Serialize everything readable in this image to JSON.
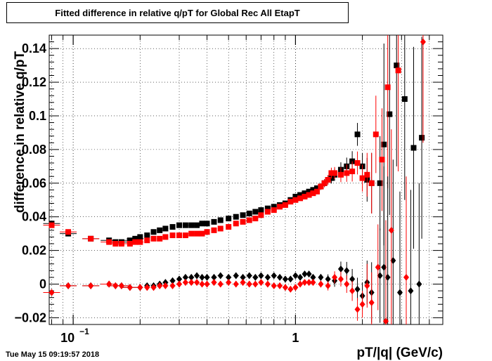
{
  "chart_data": {
    "type": "scatter",
    "title": "Fitted difference in relative q/pT for Global Rec All EtapT",
    "xlabel": "pT/|q| (GeV/c)",
    "ylabel": "difference in relative q/pT",
    "x_scale": "log",
    "xlim": [
      0.078,
      4.6
    ],
    "ylim": [
      -0.024,
      0.148
    ],
    "x_ticks": [
      {
        "value": 0.1,
        "label": "10",
        "sup": "−1"
      },
      {
        "value": 1,
        "label": "1",
        "sup": ""
      }
    ],
    "y_ticks": [
      -0.02,
      0,
      0.02,
      0.04,
      0.06,
      0.08,
      0.1,
      0.12,
      0.14
    ],
    "y_tick_labels": [
      "−0.02",
      "0",
      "0.02",
      "0.04",
      "0.06",
      "0.08",
      "0.1",
      "0.12",
      "0.14"
    ],
    "grid": true,
    "series": [
      {
        "marker": "square",
        "color": "#000000",
        "points": [
          [
            0.08,
            0.036
          ],
          [
            0.095,
            0.03
          ],
          [
            0.12,
            0.027
          ],
          [
            0.145,
            0.026
          ],
          [
            0.155,
            0.025
          ],
          [
            0.165,
            0.025
          ],
          [
            0.18,
            0.026
          ],
          [
            0.19,
            0.027
          ],
          [
            0.2,
            0.028
          ],
          [
            0.215,
            0.029
          ],
          [
            0.23,
            0.031
          ],
          [
            0.245,
            0.032
          ],
          [
            0.26,
            0.033
          ],
          [
            0.28,
            0.034
          ],
          [
            0.3,
            0.035
          ],
          [
            0.32,
            0.035
          ],
          [
            0.34,
            0.035
          ],
          [
            0.36,
            0.035
          ],
          [
            0.38,
            0.036
          ],
          [
            0.4,
            0.036
          ],
          [
            0.43,
            0.037
          ],
          [
            0.46,
            0.038
          ],
          [
            0.5,
            0.039
          ],
          [
            0.54,
            0.04
          ],
          [
            0.58,
            0.041
          ],
          [
            0.62,
            0.042
          ],
          [
            0.66,
            0.043
          ],
          [
            0.7,
            0.044
          ],
          [
            0.75,
            0.045
          ],
          [
            0.8,
            0.046
          ],
          [
            0.85,
            0.047
          ],
          [
            0.9,
            0.048
          ],
          [
            0.95,
            0.05
          ],
          [
            1.0,
            0.052
          ],
          [
            1.05,
            0.053
          ],
          [
            1.1,
            0.054
          ],
          [
            1.15,
            0.055
          ],
          [
            1.2,
            0.056
          ],
          [
            1.25,
            0.057
          ],
          [
            1.3,
            0.058
          ],
          [
            1.35,
            0.06
          ],
          [
            1.4,
            0.062
          ],
          [
            1.45,
            0.063
          ],
          [
            1.5,
            0.065
          ],
          [
            1.6,
            0.068
          ],
          [
            1.7,
            0.07
          ],
          [
            1.8,
            0.073
          ],
          [
            1.9,
            0.089
          ],
          [
            2.0,
            0.07
          ],
          [
            2.1,
            0.062
          ],
          [
            2.2,
            0.06
          ],
          [
            2.4,
            0.06
          ],
          [
            2.5,
            0.083
          ],
          [
            2.65,
            0.101
          ],
          [
            2.85,
            0.13
          ],
          [
            3.1,
            0.11
          ],
          [
            3.4,
            0.081
          ],
          [
            3.7,
            0.087
          ]
        ]
      },
      {
        "marker": "square",
        "color": "#ff0000",
        "points": [
          [
            0.08,
            0.035
          ],
          [
            0.095,
            0.031
          ],
          [
            0.12,
            0.027
          ],
          [
            0.145,
            0.025
          ],
          [
            0.155,
            0.024
          ],
          [
            0.165,
            0.024
          ],
          [
            0.18,
            0.024
          ],
          [
            0.19,
            0.025
          ],
          [
            0.2,
            0.025
          ],
          [
            0.215,
            0.026
          ],
          [
            0.23,
            0.027
          ],
          [
            0.245,
            0.027
          ],
          [
            0.26,
            0.028
          ],
          [
            0.28,
            0.029
          ],
          [
            0.3,
            0.029
          ],
          [
            0.32,
            0.029
          ],
          [
            0.34,
            0.03
          ],
          [
            0.36,
            0.03
          ],
          [
            0.38,
            0.03
          ],
          [
            0.4,
            0.031
          ],
          [
            0.43,
            0.032
          ],
          [
            0.46,
            0.033
          ],
          [
            0.5,
            0.034
          ],
          [
            0.54,
            0.036
          ],
          [
            0.58,
            0.037
          ],
          [
            0.62,
            0.038
          ],
          [
            0.66,
            0.039
          ],
          [
            0.7,
            0.041
          ],
          [
            0.75,
            0.043
          ],
          [
            0.8,
            0.044
          ],
          [
            0.85,
            0.046
          ],
          [
            0.9,
            0.047
          ],
          [
            0.95,
            0.049
          ],
          [
            1.0,
            0.05
          ],
          [
            1.05,
            0.051
          ],
          [
            1.1,
            0.052
          ],
          [
            1.15,
            0.053
          ],
          [
            1.2,
            0.054
          ],
          [
            1.25,
            0.055
          ],
          [
            1.3,
            0.058
          ],
          [
            1.35,
            0.06
          ],
          [
            1.4,
            0.062
          ],
          [
            1.45,
            0.066
          ],
          [
            1.5,
            0.066
          ],
          [
            1.6,
            0.065
          ],
          [
            1.7,
            0.066
          ],
          [
            1.8,
            0.067
          ],
          [
            1.9,
            0.072
          ],
          [
            2.0,
            0.063
          ],
          [
            2.1,
            0.065
          ],
          [
            2.2,
            0.06
          ],
          [
            2.3,
            0.089
          ],
          [
            2.45,
            0.074
          ],
          [
            2.6,
            0.117
          ],
          [
            2.9,
            0.127
          ]
        ]
      },
      {
        "marker": "diamond",
        "color": "#000000",
        "points": [
          [
            0.08,
            -0.005
          ],
          [
            0.095,
            -0.001
          ],
          [
            0.12,
            -0.001
          ],
          [
            0.145,
            0.0
          ],
          [
            0.155,
            -0.001
          ],
          [
            0.165,
            -0.001
          ],
          [
            0.18,
            -0.002
          ],
          [
            0.2,
            -0.002
          ],
          [
            0.215,
            -0.001
          ],
          [
            0.23,
            -0.001
          ],
          [
            0.245,
            0.0
          ],
          [
            0.26,
            0.001
          ],
          [
            0.28,
            0.002
          ],
          [
            0.3,
            0.003
          ],
          [
            0.32,
            0.004
          ],
          [
            0.34,
            0.004
          ],
          [
            0.36,
            0.005
          ],
          [
            0.38,
            0.004
          ],
          [
            0.4,
            0.004
          ],
          [
            0.43,
            0.004
          ],
          [
            0.46,
            0.005
          ],
          [
            0.5,
            0.004
          ],
          [
            0.54,
            0.005
          ],
          [
            0.58,
            0.004
          ],
          [
            0.62,
            0.005
          ],
          [
            0.66,
            0.004
          ],
          [
            0.7,
            0.005
          ],
          [
            0.75,
            0.004
          ],
          [
            0.8,
            0.005
          ],
          [
            0.85,
            0.004
          ],
          [
            0.9,
            0.003
          ],
          [
            0.95,
            0.003
          ],
          [
            1.0,
            0.005
          ],
          [
            1.05,
            0.004
          ],
          [
            1.1,
            0.006
          ],
          [
            1.15,
            0.006
          ],
          [
            1.2,
            0.004
          ],
          [
            1.3,
            0.004
          ],
          [
            1.4,
            0.003
          ],
          [
            1.5,
            0.002
          ],
          [
            1.6,
            0.009
          ],
          [
            1.7,
            0.008
          ],
          [
            1.8,
            0.003
          ],
          [
            1.9,
            -0.003
          ],
          [
            2.0,
            -0.007
          ],
          [
            2.1,
            0.001
          ],
          [
            2.2,
            -0.005
          ],
          [
            2.4,
            0.005
          ],
          [
            2.5,
            0.01
          ],
          [
            2.6,
            0.004
          ],
          [
            2.75,
            0.014
          ],
          [
            2.95,
            -0.005
          ],
          [
            3.3,
            -0.004
          ],
          [
            3.6,
            0.0
          ]
        ]
      },
      {
        "marker": "diamond",
        "color": "#ff0000",
        "points": [
          [
            0.08,
            -0.005
          ],
          [
            0.095,
            -0.001
          ],
          [
            0.12,
            -0.001
          ],
          [
            0.145,
            0.0
          ],
          [
            0.155,
            -0.001
          ],
          [
            0.165,
            -0.001
          ],
          [
            0.18,
            -0.002
          ],
          [
            0.2,
            -0.002
          ],
          [
            0.215,
            -0.002
          ],
          [
            0.23,
            -0.002
          ],
          [
            0.245,
            -0.001
          ],
          [
            0.26,
            -0.001
          ],
          [
            0.28,
            -0.001
          ],
          [
            0.3,
            0.0
          ],
          [
            0.32,
            0.001
          ],
          [
            0.34,
            0.001
          ],
          [
            0.36,
            0.001
          ],
          [
            0.38,
            0.0
          ],
          [
            0.4,
            0.0
          ],
          [
            0.43,
            0.001
          ],
          [
            0.46,
            0.0
          ],
          [
            0.5,
            0.001
          ],
          [
            0.54,
            0.0
          ],
          [
            0.58,
            0.001
          ],
          [
            0.62,
            0.0
          ],
          [
            0.66,
            0.0
          ],
          [
            0.7,
            0.001
          ],
          [
            0.75,
            0.0
          ],
          [
            0.8,
            -0.001
          ],
          [
            0.85,
            -0.001
          ],
          [
            0.9,
            -0.002
          ],
          [
            0.95,
            -0.003
          ],
          [
            1.0,
            -0.002
          ],
          [
            1.05,
            0.0
          ],
          [
            1.1,
            0.001
          ],
          [
            1.15,
            0.001
          ],
          [
            1.2,
            0.001
          ],
          [
            1.3,
            0.0
          ],
          [
            1.4,
            -0.001
          ],
          [
            1.5,
            0.004
          ],
          [
            1.6,
            0.003
          ],
          [
            1.7,
            0.0
          ],
          [
            1.8,
            -0.004
          ],
          [
            1.9,
            -0.015
          ],
          [
            2.0,
            -0.012
          ],
          [
            2.1,
            -0.001
          ],
          [
            2.2,
            -0.011
          ],
          [
            2.35,
            0.01
          ],
          [
            2.55,
            -0.022
          ],
          [
            2.7,
            0.032
          ],
          [
            3.15,
            0.004
          ],
          [
            3.75,
            0.144
          ]
        ]
      }
    ]
  }
}
